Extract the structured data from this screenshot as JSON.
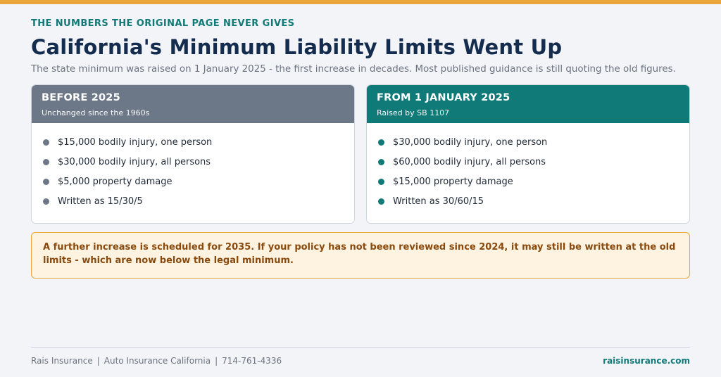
{
  "eyebrow": "THE NUMBERS THE ORIGINAL PAGE NEVER GIVES",
  "title": "California's Minimum Liability Limits Went Up",
  "subtitle": "The state minimum was raised on 1 January 2025 - the first increase in decades. Most published guidance is still quoting the old figures.",
  "before": {
    "title": "BEFORE 2025",
    "subtitle": "Unchanged since the 1960s",
    "items": [
      "$15,000 bodily injury, one person",
      "$30,000 bodily injury, all persons",
      "$5,000 property damage",
      "Written as 15/30/5"
    ]
  },
  "after": {
    "title": "FROM 1 JANUARY 2025",
    "subtitle": "Raised by SB 1107",
    "items": [
      "$30,000 bodily injury, one person",
      "$60,000 bodily injury, all persons",
      "$15,000 property damage",
      "Written as 30/60/15"
    ]
  },
  "callout": "A further increase is scheduled for 2035. If your policy has not been reviewed since 2024, it may still be written at the old limits - which are now below the legal minimum.",
  "footer": {
    "brand": "Rais Insurance",
    "section": "Auto Insurance California",
    "phone": "714-761-4336",
    "separator": "|",
    "website": "raisinsurance.com"
  },
  "colors": {
    "accent_orange": "#eba53a",
    "teal": "#0f7a78",
    "navy": "#142c4d",
    "slate": "#6c7788"
  }
}
